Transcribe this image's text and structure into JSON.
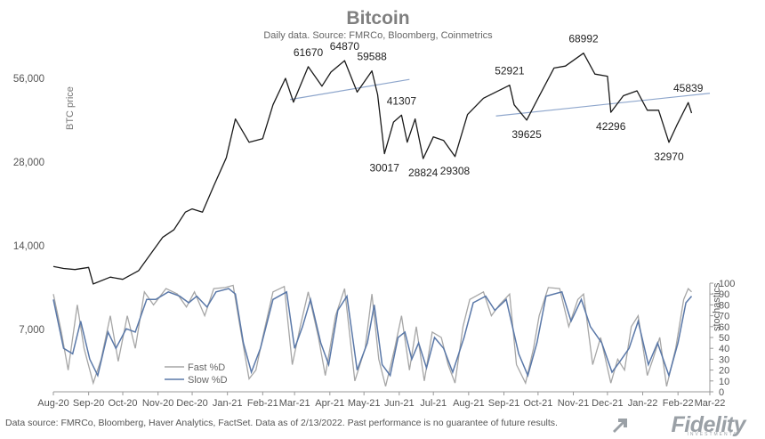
{
  "colors": {
    "price": "#1a1a1a",
    "fast": "#a6a6a6",
    "slow": "#5a78a8",
    "trendline": "#8ea6cc",
    "axis_text": "#555555",
    "title": "#7f7f7f"
  },
  "footer": {
    "source": "Data source: FMRCo, Bloomberg, Haver Analytics, FactSet. Data as of 2/13/2022. Past performance is no guarantee of future results.",
    "logo": "Fidelity",
    "logo_sub": "INVESTMENTS"
  },
  "chart_data": {
    "type": "line",
    "title": "Bitcoin",
    "subtitle": "Daily data.  Source: FMRCo, Bloomberg, Coinmetrics",
    "ylabel": "BTC price",
    "y2label": "stochastics",
    "y_scale": "log",
    "y_ticks": [
      "56,000",
      "28,000",
      "14,000",
      "7,000"
    ],
    "y_tick_values": [
      56000,
      28000,
      14000,
      7000
    ],
    "y2_ticks": [
      "0",
      "10",
      "20",
      "30",
      "40",
      "50",
      "60",
      "70",
      "80",
      "90",
      "100"
    ],
    "y2lim": [
      0,
      100
    ],
    "x_ticks": [
      "Aug-20",
      "Sep-20",
      "Oct-20",
      "Nov-20",
      "Dec-20",
      "Jan-21",
      "Feb-21",
      "Mar-21",
      "Apr-21",
      "May-21",
      "Jun-21",
      "Jul-21",
      "Aug-21",
      "Sep-21",
      "Oct-21",
      "Nov-21",
      "Dec-21",
      "Jan-22",
      "Feb-22",
      "Mar-22"
    ],
    "xlim": [
      "2020-08-01",
      "2022-03-01"
    ],
    "grid": false,
    "legend": {
      "placement": "bottom-left",
      "entries": [
        "Fast %D",
        "Slow %D"
      ]
    },
    "series": [
      {
        "name": "BTC price",
        "points": [
          [
            "2020-08-01",
            11800
          ],
          [
            "2020-08-10",
            11600
          ],
          [
            "2020-08-20",
            11500
          ],
          [
            "2020-09-01",
            11700
          ],
          [
            "2020-09-05",
            10200
          ],
          [
            "2020-09-20",
            10800
          ],
          [
            "2020-10-01",
            10600
          ],
          [
            "2020-10-15",
            11400
          ],
          [
            "2020-10-25",
            13000
          ],
          [
            "2020-11-05",
            15000
          ],
          [
            "2020-11-15",
            16000
          ],
          [
            "2020-11-25",
            18500
          ],
          [
            "2020-12-01",
            19000
          ],
          [
            "2020-12-10",
            18500
          ],
          [
            "2020-12-20",
            23000
          ],
          [
            "2020-12-31",
            29000
          ],
          [
            "2021-01-08",
            40000
          ],
          [
            "2021-01-20",
            33000
          ],
          [
            "2021-02-01",
            34000
          ],
          [
            "2021-02-10",
            45000
          ],
          [
            "2021-02-21",
            56000
          ],
          [
            "2021-02-28",
            46000
          ],
          [
            "2021-03-13",
            61670
          ],
          [
            "2021-03-25",
            52500
          ],
          [
            "2021-04-02",
            59000
          ],
          [
            "2021-04-14",
            64870
          ],
          [
            "2021-04-25",
            50000
          ],
          [
            "2021-05-08",
            59588
          ],
          [
            "2021-05-13",
            49000
          ],
          [
            "2021-05-19",
            30017
          ],
          [
            "2021-05-27",
            39000
          ],
          [
            "2021-06-03",
            41307
          ],
          [
            "2021-06-08",
            33000
          ],
          [
            "2021-06-15",
            40000
          ],
          [
            "2021-06-22",
            28824
          ],
          [
            "2021-07-01",
            34500
          ],
          [
            "2021-07-10",
            33500
          ],
          [
            "2021-07-20",
            29308
          ],
          [
            "2021-07-31",
            41500
          ],
          [
            "2021-08-14",
            47500
          ],
          [
            "2021-09-06",
            52921
          ],
          [
            "2021-09-10",
            45000
          ],
          [
            "2021-09-21",
            39625
          ],
          [
            "2021-10-01",
            47500
          ],
          [
            "2021-10-15",
            61000
          ],
          [
            "2021-10-25",
            62000
          ],
          [
            "2021-11-10",
            68992
          ],
          [
            "2021-11-20",
            58000
          ],
          [
            "2021-12-01",
            57000
          ],
          [
            "2021-12-04",
            42296
          ],
          [
            "2021-12-15",
            48500
          ],
          [
            "2021-12-27",
            50500
          ],
          [
            "2022-01-05",
            43000
          ],
          [
            "2022-01-15",
            43000
          ],
          [
            "2022-01-24",
            32970
          ],
          [
            "2022-01-31",
            38000
          ],
          [
            "2022-02-10",
            45839
          ],
          [
            "2022-02-13",
            42000
          ]
        ]
      },
      {
        "name": "Fast %D",
        "points": [
          [
            "2020-08-01",
            90
          ],
          [
            "2020-08-08",
            55
          ],
          [
            "2020-08-14",
            20
          ],
          [
            "2020-08-22",
            80
          ],
          [
            "2020-08-28",
            40
          ],
          [
            "2020-09-05",
            8
          ],
          [
            "2020-09-12",
            30
          ],
          [
            "2020-09-20",
            70
          ],
          [
            "2020-09-27",
            28
          ],
          [
            "2020-10-05",
            70
          ],
          [
            "2020-10-12",
            40
          ],
          [
            "2020-10-20",
            92
          ],
          [
            "2020-10-28",
            80
          ],
          [
            "2020-11-08",
            95
          ],
          [
            "2020-11-18",
            90
          ],
          [
            "2020-11-26",
            78
          ],
          [
            "2020-12-03",
            92
          ],
          [
            "2020-12-12",
            70
          ],
          [
            "2020-12-20",
            95
          ],
          [
            "2020-12-30",
            96
          ],
          [
            "2021-01-06",
            98
          ],
          [
            "2021-01-12",
            60
          ],
          [
            "2021-01-20",
            12
          ],
          [
            "2021-01-26",
            20
          ],
          [
            "2021-02-01",
            50
          ],
          [
            "2021-02-10",
            92
          ],
          [
            "2021-02-20",
            97
          ],
          [
            "2021-02-27",
            25
          ],
          [
            "2021-03-06",
            60
          ],
          [
            "2021-03-13",
            92
          ],
          [
            "2021-03-22",
            50
          ],
          [
            "2021-03-28",
            15
          ],
          [
            "2021-04-06",
            70
          ],
          [
            "2021-04-14",
            95
          ],
          [
            "2021-04-23",
            10
          ],
          [
            "2021-05-02",
            40
          ],
          [
            "2021-05-08",
            90
          ],
          [
            "2021-05-14",
            30
          ],
          [
            "2021-05-20",
            5
          ],
          [
            "2021-05-28",
            40
          ],
          [
            "2021-06-03",
            70
          ],
          [
            "2021-06-10",
            20
          ],
          [
            "2021-06-16",
            60
          ],
          [
            "2021-06-23",
            10
          ],
          [
            "2021-06-30",
            55
          ],
          [
            "2021-07-08",
            50
          ],
          [
            "2021-07-14",
            25
          ],
          [
            "2021-07-20",
            8
          ],
          [
            "2021-07-27",
            60
          ],
          [
            "2021-08-02",
            85
          ],
          [
            "2021-08-14",
            92
          ],
          [
            "2021-08-21",
            70
          ],
          [
            "2021-08-28",
            80
          ],
          [
            "2021-09-06",
            90
          ],
          [
            "2021-09-12",
            25
          ],
          [
            "2021-09-20",
            8
          ],
          [
            "2021-09-27",
            40
          ],
          [
            "2021-10-02",
            70
          ],
          [
            "2021-10-10",
            96
          ],
          [
            "2021-10-20",
            95
          ],
          [
            "2021-10-28",
            60
          ],
          [
            "2021-11-05",
            85
          ],
          [
            "2021-11-10",
            90
          ],
          [
            "2021-11-18",
            25
          ],
          [
            "2021-11-25",
            50
          ],
          [
            "2021-12-04",
            8
          ],
          [
            "2021-12-10",
            30
          ],
          [
            "2021-12-16",
            20
          ],
          [
            "2021-12-22",
            60
          ],
          [
            "2021-12-28",
            70
          ],
          [
            "2022-01-05",
            15
          ],
          [
            "2022-01-10",
            30
          ],
          [
            "2022-01-16",
            50
          ],
          [
            "2022-01-22",
            5
          ],
          [
            "2022-01-30",
            40
          ],
          [
            "2022-02-06",
            85
          ],
          [
            "2022-02-10",
            95
          ],
          [
            "2022-02-13",
            92
          ]
        ]
      },
      {
        "name": "Slow %D",
        "points": [
          [
            "2020-08-01",
            85
          ],
          [
            "2020-08-10",
            40
          ],
          [
            "2020-08-18",
            35
          ],
          [
            "2020-08-25",
            65
          ],
          [
            "2020-09-02",
            30
          ],
          [
            "2020-09-09",
            15
          ],
          [
            "2020-09-18",
            55
          ],
          [
            "2020-09-25",
            40
          ],
          [
            "2020-10-04",
            58
          ],
          [
            "2020-10-12",
            55
          ],
          [
            "2020-10-22",
            85
          ],
          [
            "2020-10-30",
            85
          ],
          [
            "2020-11-10",
            92
          ],
          [
            "2020-11-20",
            88
          ],
          [
            "2020-11-28",
            82
          ],
          [
            "2020-12-05",
            88
          ],
          [
            "2020-12-14",
            78
          ],
          [
            "2020-12-22",
            92
          ],
          [
            "2021-01-02",
            95
          ],
          [
            "2021-01-08",
            90
          ],
          [
            "2021-01-15",
            45
          ],
          [
            "2021-01-22",
            18
          ],
          [
            "2021-01-30",
            40
          ],
          [
            "2021-02-10",
            85
          ],
          [
            "2021-02-22",
            92
          ],
          [
            "2021-03-01",
            40
          ],
          [
            "2021-03-08",
            60
          ],
          [
            "2021-03-15",
            85
          ],
          [
            "2021-03-24",
            45
          ],
          [
            "2021-03-31",
            25
          ],
          [
            "2021-04-08",
            75
          ],
          [
            "2021-04-16",
            88
          ],
          [
            "2021-04-25",
            20
          ],
          [
            "2021-05-04",
            45
          ],
          [
            "2021-05-10",
            80
          ],
          [
            "2021-05-17",
            25
          ],
          [
            "2021-05-24",
            15
          ],
          [
            "2021-05-31",
            50
          ],
          [
            "2021-06-06",
            55
          ],
          [
            "2021-06-12",
            30
          ],
          [
            "2021-06-18",
            45
          ],
          [
            "2021-06-25",
            22
          ],
          [
            "2021-07-02",
            50
          ],
          [
            "2021-07-10",
            40
          ],
          [
            "2021-07-18",
            18
          ],
          [
            "2021-07-28",
            50
          ],
          [
            "2021-08-05",
            82
          ],
          [
            "2021-08-16",
            88
          ],
          [
            "2021-08-24",
            75
          ],
          [
            "2021-09-03",
            85
          ],
          [
            "2021-09-14",
            35
          ],
          [
            "2021-09-22",
            15
          ],
          [
            "2021-09-30",
            45
          ],
          [
            "2021-10-08",
            88
          ],
          [
            "2021-10-22",
            92
          ],
          [
            "2021-10-30",
            65
          ],
          [
            "2021-11-08",
            85
          ],
          [
            "2021-11-16",
            60
          ],
          [
            "2021-11-26",
            45
          ],
          [
            "2021-12-05",
            18
          ],
          [
            "2021-12-12",
            28
          ],
          [
            "2021-12-20",
            40
          ],
          [
            "2021-12-28",
            65
          ],
          [
            "2022-01-06",
            25
          ],
          [
            "2022-01-14",
            45
          ],
          [
            "2022-01-24",
            15
          ],
          [
            "2022-02-01",
            45
          ],
          [
            "2022-02-08",
            82
          ],
          [
            "2022-02-13",
            88
          ]
        ]
      }
    ],
    "trendlines": [
      {
        "from": [
          "2021-02-25",
          47000
        ],
        "to": [
          "2021-06-10",
          55500
        ]
      },
      {
        "from": [
          "2021-08-25",
          41000
        ],
        "to": [
          "2022-03-01",
          49500
        ]
      }
    ],
    "annotations": [
      {
        "text": "61670",
        "date": "2021-03-13",
        "value": 61670,
        "pos": "above"
      },
      {
        "text": "64870",
        "date": "2021-04-14",
        "value": 64870,
        "pos": "above"
      },
      {
        "text": "59588",
        "date": "2021-05-08",
        "value": 59588,
        "pos": "above"
      },
      {
        "text": "41307",
        "date": "2021-06-03",
        "value": 41307,
        "pos": "above"
      },
      {
        "text": "30017",
        "date": "2021-05-19",
        "value": 30017,
        "pos": "below"
      },
      {
        "text": "28824",
        "date": "2021-06-22",
        "value": 28824,
        "pos": "below"
      },
      {
        "text": "29308",
        "date": "2021-07-20",
        "value": 29308,
        "pos": "below"
      },
      {
        "text": "52921",
        "date": "2021-09-06",
        "value": 52921,
        "pos": "above"
      },
      {
        "text": "39625",
        "date": "2021-09-21",
        "value": 39625,
        "pos": "below"
      },
      {
        "text": "68992",
        "date": "2021-11-10",
        "value": 68992,
        "pos": "above"
      },
      {
        "text": "42296",
        "date": "2021-12-04",
        "value": 42296,
        "pos": "below"
      },
      {
        "text": "45839",
        "date": "2022-02-10",
        "value": 45839,
        "pos": "above"
      },
      {
        "text": "32970",
        "date": "2022-01-24",
        "value": 32970,
        "pos": "below"
      }
    ]
  }
}
